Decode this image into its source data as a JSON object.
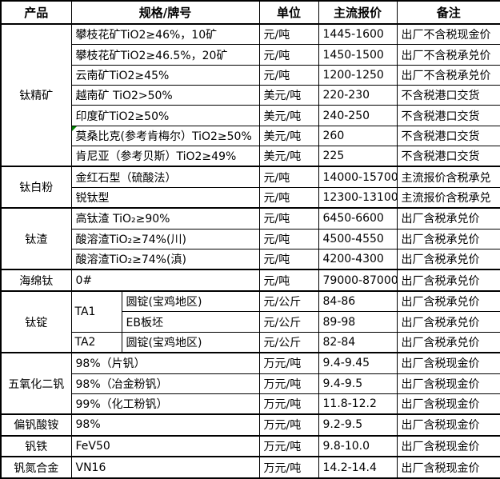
{
  "colors": {
    "background": "#ffffff",
    "text": "#000000",
    "border": "#000000",
    "comment_marker": "#008000"
  },
  "icons": {
    "comment_marker": {
      "name": "cell-comment-corner-triangle",
      "shape": "corner-triangle",
      "color": "#008000"
    }
  },
  "table": {
    "headers": [
      "产品",
      "规格/牌号",
      "单位",
      "主流报价",
      "备注"
    ],
    "groups": [
      {
        "product": "钛精矿",
        "rows": [
          {
            "spec": "攀枝花矿TiO2≥46%，10矿",
            "unit": "元/吨",
            "price": "1445-1600",
            "note": "出厂不含税现金价"
          },
          {
            "spec": "攀枝花矿TiO2≥46.5%，20矿",
            "unit": "元/吨",
            "price": "1450-1500",
            "note": "出厂不含税承兑价"
          },
          {
            "spec": "云南矿TiO2≥45%",
            "unit": "元/吨",
            "price": "1200-1250",
            "note": "出厂不含税承兑价"
          },
          {
            "spec": "越南矿 TiO2>50%",
            "unit": "美元/吨",
            "price": "220-230",
            "note": "不含税港口交货"
          },
          {
            "spec": "印度矿TiO2≥50%",
            "unit": "美元/吨",
            "price": "240-250",
            "note": "不含税港口交货"
          },
          {
            "spec": "莫桑比克(参考肯梅尔）TiO2≥50%",
            "unit": "美元/吨",
            "price": "260",
            "note": "不含税港口交货",
            "comment_marker": true
          },
          {
            "spec": "肯尼亚（参考贝斯）TiO2≥49%",
            "unit": "美元/吨",
            "price": "225",
            "note": "不含税港口交货"
          }
        ]
      },
      {
        "product": "钛白粉",
        "rows": [
          {
            "spec": "金红石型（硫酸法）",
            "unit": "元/吨",
            "price": "14000-15700",
            "note": "主流报价含税承兑"
          },
          {
            "spec": "锐钛型",
            "unit": "元/吨",
            "price": "12300-13100",
            "note": "主流报价含税承兑"
          }
        ]
      },
      {
        "product": "钛渣",
        "rows": [
          {
            "spec": "高钛渣 TiO₂≥90%",
            "unit": "元/吨",
            "price": "6450-6600",
            "note": "出厂含税承兑价"
          },
          {
            "spec": "酸溶渣TiO₂≥74%(川)",
            "unit": "元/吨",
            "price": "4500-4550",
            "note": "出厂含税承兑价"
          },
          {
            "spec": "酸溶渣TiO₂≥74%(滇)",
            "unit": "元/吨",
            "price": "4200-4300",
            "note": "出厂含税承兑价"
          }
        ]
      },
      {
        "product": "海绵钛",
        "rows": [
          {
            "spec": "0#",
            "unit": "元/吨",
            "price": "79000-87000",
            "note": "出厂含税承兑价"
          }
        ]
      },
      {
        "product": "钛锭",
        "split_spec": true,
        "rows": [
          {
            "grade": "TA1",
            "grade_rowspan": 2,
            "spec": "圆锭(宝鸡地区)",
            "unit": "元/公斤",
            "price": "84-86",
            "note": "出厂含税承兑价"
          },
          {
            "spec": "EB板坯",
            "unit": "元/公斤",
            "price": "89-98",
            "note": "出厂含税承兑价"
          },
          {
            "grade": "TA2",
            "grade_rowspan": 1,
            "spec": "圆锭(宝鸡地区)",
            "unit": "元/公斤",
            "price": "82-84",
            "note": "出厂含税承兑价"
          }
        ]
      },
      {
        "product": "五氧化二钒",
        "rows": [
          {
            "spec": "98%（片钒）",
            "unit": "万元/吨",
            "price": "9.4-9.45",
            "note": "出厂含税现金价"
          },
          {
            "spec": "98%（冶金粉钒）",
            "unit": "万元/吨",
            "price": "9.4-9.5",
            "note": "出厂含税现金价"
          },
          {
            "spec": "99%（化工粉钒）",
            "unit": "万元/吨",
            "price": "11.8-12.2",
            "note": "出厂含税现金价"
          }
        ]
      },
      {
        "product": "偏钒酸铵",
        "rows": [
          {
            "spec": "98%",
            "unit": "万元/吨",
            "price": "9.2-9.5",
            "note": "出厂含税现金价"
          }
        ]
      },
      {
        "product": "钒铁",
        "rows": [
          {
            "spec": "FeV50",
            "unit": "万元/吨",
            "price": "9.8-10.0",
            "note": "出厂含税现金价"
          }
        ]
      },
      {
        "product": "钒氮合金",
        "rows": [
          {
            "spec": "VN16",
            "unit": "万元/吨",
            "price": "14.2-14.4",
            "note": "出厂含税现金价"
          }
        ]
      }
    ]
  }
}
